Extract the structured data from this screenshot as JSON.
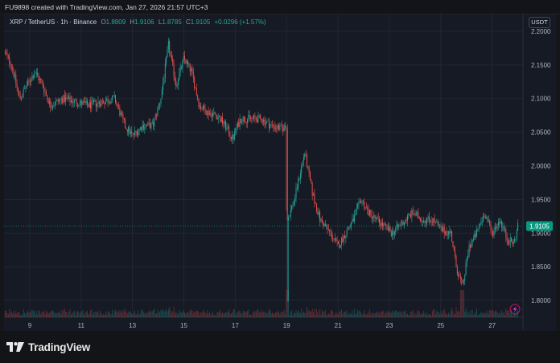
{
  "header": {
    "created_by": "FU9898 created with TradingView.com, Jan 27, 2026 21:57 UTC+3"
  },
  "legend": {
    "symbol": "XRP / TetherUS · 1h · Binance",
    "open_label": "O",
    "open": "1.8809",
    "high_label": "H",
    "high": "1.9106",
    "low_label": "L",
    "low": "1.8785",
    "close_label": "C",
    "close": "1.9105",
    "change": "+0.0296 (+1.57%)"
  },
  "quote_button": "USDT",
  "brand": "TradingView",
  "colors": {
    "up": "#26a69a",
    "down": "#ef5350",
    "background": "#161a25",
    "grid": "#222631",
    "last_price": "#089981"
  },
  "chart_data": {
    "type": "candlestick",
    "x_ticks": [
      "9",
      "11",
      "13",
      "15",
      "17",
      "19",
      "21",
      "23",
      "25",
      "27"
    ],
    "y_ticks": [
      "2.2000",
      "2.1500",
      "2.1000",
      "2.0500",
      "2.0000",
      "1.9500",
      "1.9000",
      "1.8500",
      "1.8000"
    ],
    "ylim": [
      1.775,
      2.225
    ],
    "last_price": "1.9105",
    "grid": true,
    "volume": true,
    "close_path": [
      [
        8.0,
        2.17
      ],
      [
        8.3,
        2.15
      ],
      [
        8.6,
        2.1
      ],
      [
        8.9,
        2.12
      ],
      [
        9.2,
        2.14
      ],
      [
        9.5,
        2.12
      ],
      [
        9.8,
        2.09
      ],
      [
        10.3,
        2.1
      ],
      [
        10.8,
        2.095
      ],
      [
        11.3,
        2.09
      ],
      [
        11.8,
        2.095
      ],
      [
        12.3,
        2.1
      ],
      [
        12.7,
        2.06
      ],
      [
        13.0,
        2.045
      ],
      [
        13.4,
        2.06
      ],
      [
        13.8,
        2.06
      ],
      [
        14.1,
        2.1
      ],
      [
        14.4,
        2.18
      ],
      [
        14.7,
        2.12
      ],
      [
        15.0,
        2.16
      ],
      [
        15.3,
        2.14
      ],
      [
        15.6,
        2.09
      ],
      [
        15.9,
        2.08
      ],
      [
        16.3,
        2.075
      ],
      [
        16.6,
        2.06
      ],
      [
        16.9,
        2.04
      ],
      [
        17.2,
        2.07
      ],
      [
        17.6,
        2.07
      ],
      [
        18.0,
        2.07
      ],
      [
        18.4,
        2.06
      ],
      [
        18.8,
        2.055
      ],
      [
        19.0,
        2.06
      ],
      [
        19.03,
        1.92
      ],
      [
        19.3,
        1.95
      ],
      [
        19.7,
        2.02
      ],
      [
        20.0,
        1.96
      ],
      [
        20.3,
        1.92
      ],
      [
        20.7,
        1.9
      ],
      [
        21.0,
        1.88
      ],
      [
        21.3,
        1.9
      ],
      [
        21.6,
        1.92
      ],
      [
        21.9,
        1.95
      ],
      [
        22.2,
        1.93
      ],
      [
        22.5,
        1.92
      ],
      [
        22.8,
        1.91
      ],
      [
        23.1,
        1.9
      ],
      [
        23.5,
        1.915
      ],
      [
        23.9,
        1.93
      ],
      [
        24.3,
        1.92
      ],
      [
        24.7,
        1.92
      ],
      [
        25.0,
        1.905
      ],
      [
        25.4,
        1.9
      ],
      [
        25.6,
        1.85
      ],
      [
        25.85,
        1.82
      ],
      [
        26.1,
        1.88
      ],
      [
        26.4,
        1.9
      ],
      [
        26.7,
        1.93
      ],
      [
        27.0,
        1.9
      ],
      [
        27.3,
        1.92
      ],
      [
        27.6,
        1.89
      ],
      [
        27.85,
        1.885
      ],
      [
        28.0,
        1.9105
      ]
    ]
  }
}
